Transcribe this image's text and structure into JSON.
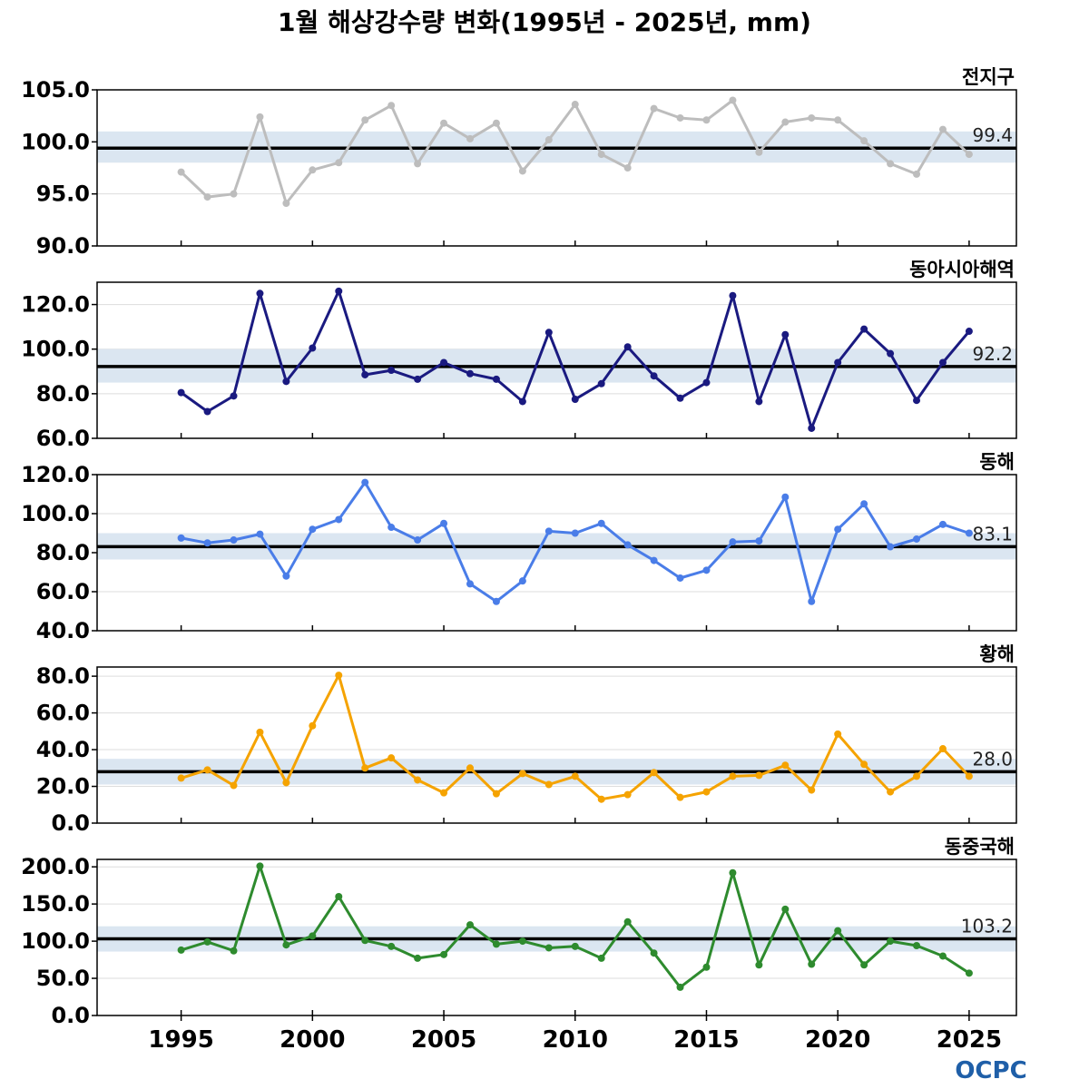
{
  "title": "1월 해상강수량 변화(1995년 - 2025년, mm)",
  "logo_text": "OCPC",
  "colors": {
    "band": "#dbe6f1",
    "mean_line": "#000000",
    "grid": "#dddddd"
  },
  "chart_data": [
    {
      "type": "line",
      "panel_label": "전지구",
      "color": "#bdbdbd",
      "x": [
        1995,
        1996,
        1997,
        1998,
        1999,
        2000,
        2001,
        2002,
        2003,
        2004,
        2005,
        2006,
        2007,
        2008,
        2009,
        2010,
        2011,
        2012,
        2013,
        2014,
        2015,
        2016,
        2017,
        2018,
        2019,
        2020,
        2021,
        2022,
        2023,
        2024,
        2025
      ],
      "values": [
        97.1,
        94.7,
        95.0,
        102.4,
        94.1,
        97.3,
        98.0,
        102.1,
        103.5,
        97.9,
        101.8,
        100.3,
        101.8,
        97.2,
        100.2,
        103.6,
        98.8,
        97.5,
        103.2,
        102.3,
        102.1,
        104.0,
        99.0,
        101.9,
        102.3,
        102.1,
        100.1,
        97.9,
        96.9,
        101.2,
        98.8
      ],
      "mean": 99.4,
      "mean_label": "99.4",
      "band": [
        98.0,
        101.0
      ],
      "ylim": [
        90,
        105
      ],
      "yticks": [
        90,
        95,
        100,
        105
      ],
      "ytick_labels": [
        "90.0",
        "95.0",
        "100.0",
        "105.0"
      ]
    },
    {
      "type": "line",
      "panel_label": "동아시아해역",
      "color": "#1a1a80",
      "x": [
        1995,
        1996,
        1997,
        1998,
        1999,
        2000,
        2001,
        2002,
        2003,
        2004,
        2005,
        2006,
        2007,
        2008,
        2009,
        2010,
        2011,
        2012,
        2013,
        2014,
        2015,
        2016,
        2017,
        2018,
        2019,
        2020,
        2021,
        2022,
        2023,
        2024,
        2025
      ],
      "values": [
        80.5,
        72.0,
        79.0,
        125.0,
        85.5,
        100.5,
        126.0,
        88.5,
        90.5,
        86.5,
        94.0,
        89.0,
        86.5,
        76.5,
        107.5,
        77.5,
        84.5,
        101.0,
        88.0,
        78.0,
        85.0,
        124.0,
        76.5,
        106.5,
        64.5,
        94.0,
        109.0,
        98.0,
        77.0,
        94.0,
        108.0
      ],
      "mean": 92.2,
      "mean_label": "92.2",
      "band": [
        85.0,
        100.0
      ],
      "ylim": [
        60,
        130
      ],
      "yticks": [
        60,
        80,
        100,
        120
      ],
      "ytick_labels": [
        "60.0",
        "80.0",
        "100.0",
        "120.0"
      ]
    },
    {
      "type": "line",
      "panel_label": "동해",
      "color": "#4a7de8",
      "x": [
        1995,
        1996,
        1997,
        1998,
        1999,
        2000,
        2001,
        2002,
        2003,
        2004,
        2005,
        2006,
        2007,
        2008,
        2009,
        2010,
        2011,
        2012,
        2013,
        2014,
        2015,
        2016,
        2017,
        2018,
        2019,
        2020,
        2021,
        2022,
        2023,
        2024,
        2025
      ],
      "values": [
        87.5,
        85.0,
        86.5,
        89.5,
        68.0,
        92.0,
        97.0,
        116.0,
        93.0,
        86.5,
        95.0,
        64.0,
        55.0,
        65.5,
        91.0,
        90.0,
        95.0,
        84.0,
        76.0,
        67.0,
        71.0,
        85.5,
        86.0,
        108.5,
        55.0,
        92.0,
        105.0,
        83.0,
        87.0,
        94.5,
        90.0
      ],
      "mean": 83.1,
      "mean_label": "83.1",
      "band": [
        76.5,
        90.0
      ],
      "ylim": [
        40,
        120
      ],
      "yticks": [
        40,
        60,
        80,
        100,
        120
      ],
      "ytick_labels": [
        "40.0",
        "60.0",
        "80.0",
        "100.0",
        "120.0"
      ]
    },
    {
      "type": "line",
      "panel_label": "황해",
      "color": "#f5a300",
      "x": [
        1995,
        1996,
        1997,
        1998,
        1999,
        2000,
        2001,
        2002,
        2003,
        2004,
        2005,
        2006,
        2007,
        2008,
        2009,
        2010,
        2011,
        2012,
        2013,
        2014,
        2015,
        2016,
        2017,
        2018,
        2019,
        2020,
        2021,
        2022,
        2023,
        2024,
        2025
      ],
      "values": [
        24.5,
        29.0,
        20.5,
        49.5,
        22.0,
        53.0,
        80.5,
        30.0,
        35.5,
        23.5,
        16.5,
        30.0,
        16.0,
        27.0,
        21.0,
        25.5,
        13.0,
        15.5,
        27.5,
        14.0,
        17.0,
        25.5,
        26.0,
        31.5,
        18.0,
        48.5,
        32.0,
        17.0,
        25.5,
        40.5,
        25.5
      ],
      "mean": 28.0,
      "mean_label": "28.0",
      "band": [
        21.0,
        35.0
      ],
      "ylim": [
        0,
        85
      ],
      "yticks": [
        0,
        20,
        40,
        60,
        80
      ],
      "ytick_labels": [
        "0.0",
        "20.0",
        "40.0",
        "60.0",
        "80.0"
      ]
    },
    {
      "type": "line",
      "panel_label": "동중국해",
      "color": "#2e8b2e",
      "x": [
        1995,
        1996,
        1997,
        1998,
        1999,
        2000,
        2001,
        2002,
        2003,
        2004,
        2005,
        2006,
        2007,
        2008,
        2009,
        2010,
        2011,
        2012,
        2013,
        2014,
        2015,
        2016,
        2017,
        2018,
        2019,
        2020,
        2021,
        2022,
        2023,
        2024,
        2025
      ],
      "values": [
        88.0,
        99.0,
        87.0,
        201.0,
        95.0,
        107.0,
        160.0,
        101.0,
        93.0,
        77.0,
        82.0,
        122.0,
        96.0,
        100.0,
        91.0,
        93.0,
        77.0,
        126.0,
        84.0,
        38.0,
        65.0,
        192.0,
        68.0,
        143.0,
        69.0,
        114.0,
        68.0,
        100.0,
        94.0,
        80.0,
        57.0
      ],
      "mean": 103.2,
      "mean_label": "103.2",
      "band": [
        86.0,
        120.0
      ],
      "ylim": [
        0,
        210
      ],
      "yticks": [
        0,
        50,
        100,
        150,
        200
      ],
      "ytick_labels": [
        "0.0",
        "50.0",
        "100.0",
        "150.0",
        "200.0"
      ]
    }
  ],
  "xaxis": {
    "xlim": [
      1991.8,
      2026.8
    ],
    "ticks": [
      1995,
      2000,
      2005,
      2010,
      2015,
      2020,
      2025
    ],
    "tick_labels": [
      "1995",
      "2000",
      "2005",
      "2010",
      "2015",
      "2020",
      "2025"
    ]
  }
}
